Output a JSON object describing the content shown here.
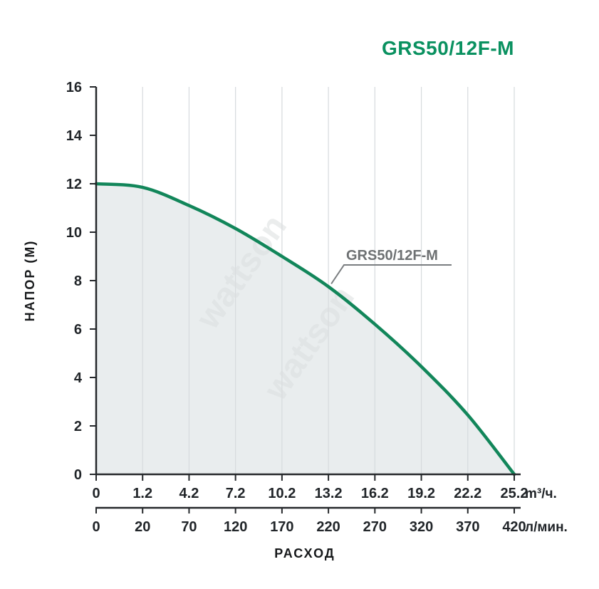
{
  "title": "GRS50/12F-M",
  "watermark": "wattson",
  "chart_data": {
    "type": "line",
    "title": "GRS50/12F-M",
    "xlabel": "РАСХОД",
    "ylabel": "НАПОР (М)",
    "ylim": [
      0,
      16
    ],
    "y_ticks": [
      0,
      2,
      4,
      6,
      8,
      10,
      12,
      14,
      16
    ],
    "x_axis_primary": {
      "labels": [
        "0",
        "1.2",
        "4.2",
        "7.2",
        "10.2",
        "13.2",
        "16.2",
        "19.2",
        "22.2",
        "25.2"
      ],
      "unit": "m³/ч."
    },
    "x_axis_secondary": {
      "labels": [
        "0",
        "20",
        "70",
        "120",
        "170",
        "220",
        "270",
        "320",
        "370",
        "420"
      ],
      "unit": "л/мин."
    },
    "series": [
      {
        "name": "GRS50/12F-M",
        "x_m3h": [
          0,
          1.2,
          4.2,
          7.2,
          10.2,
          13.2,
          16.2,
          19.2,
          22.2,
          25.2
        ],
        "x_lmin": [
          0,
          20,
          70,
          120,
          170,
          220,
          270,
          320,
          370,
          420
        ],
        "head_m": [
          12,
          11.85,
          11.1,
          10.15,
          9.0,
          7.75,
          6.2,
          4.45,
          2.45,
          0
        ]
      }
    ],
    "annotation": {
      "label": "GRS50/12F-M",
      "attached_at_m3h": 13.2
    },
    "grid": "vertical",
    "legend": "none",
    "area_fill_under_curve": true,
    "colors": {
      "curve": "#12865a",
      "fill": "#e9edee",
      "grid": "#d6dadd",
      "axis": "#25282b",
      "tick_text": "#212529",
      "title": "#0a9160",
      "annotation_text": "#6e7173",
      "annotation_line": "#7a7d80",
      "watermark": "#dcdfe0"
    }
  }
}
